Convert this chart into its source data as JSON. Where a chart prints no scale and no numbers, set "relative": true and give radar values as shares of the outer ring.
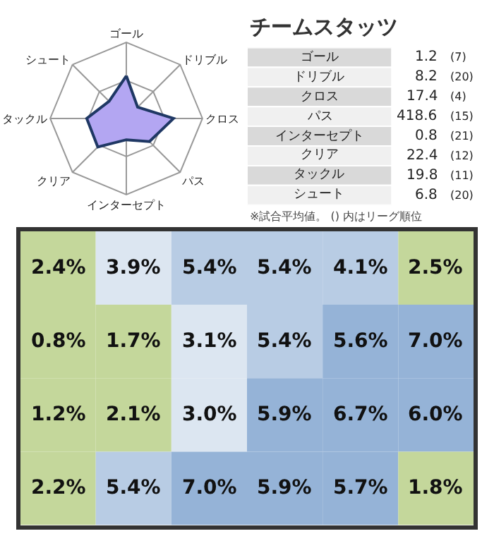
{
  "chart_data": [
    {
      "type": "radar",
      "categories": [
        "ゴール",
        "ドリブル",
        "クロス",
        "パス",
        "インターセプト",
        "クリア",
        "タックル",
        "シュート"
      ],
      "relative": true,
      "grid": true,
      "series": [
        {
          "color": "#b3a6f2",
          "values": [
            0.56,
            0.21,
            0.62,
            0.43,
            0.28,
            0.53,
            0.52,
            0.32
          ]
        }
      ]
    },
    {
      "type": "other",
      "title": "チームスタッツ",
      "categories": [
        "ゴール",
        "ドリブル",
        "クロス",
        "パス",
        "インターセプト",
        "クリア",
        "タックル",
        "シュート"
      ],
      "series": [
        {
          "values": [
            1.2,
            8.2,
            17.4,
            418.6,
            0.8,
            22.4,
            19.8,
            6.8
          ],
          "value_labels": [
            "1.2",
            "8.2",
            "17.4",
            "418.6",
            "0.8",
            "22.4",
            "19.8",
            "6.8"
          ]
        },
        {
          "values": [
            7,
            20,
            4,
            15,
            21,
            12,
            11,
            20
          ],
          "value_labels": [
            "(7)",
            "(20)",
            "(4)",
            "(15)",
            "(21)",
            "(12)",
            "(11)",
            "(20)"
          ]
        }
      ],
      "annotations": [
        "※試合平均値。 () 内はリーグ順位"
      ]
    },
    {
      "type": "heatmap",
      "categories": [
        null,
        null,
        null,
        null,
        null,
        null
      ],
      "y_categories": [
        null,
        null,
        null,
        null
      ],
      "cells": [
        [
          2.4,
          3.9,
          5.4,
          5.4,
          4.1,
          2.5
        ],
        [
          0.8,
          1.7,
          3.1,
          5.4,
          5.6,
          7.0
        ],
        [
          1.2,
          2.1,
          3.0,
          5.9,
          6.7,
          6.0
        ],
        [
          2.2,
          5.4,
          7.0,
          5.9,
          5.7,
          1.8
        ]
      ],
      "cell_labels": [
        [
          "2.4%",
          "3.9%",
          "5.4%",
          "5.4%",
          "4.1%",
          "2.5%"
        ],
        [
          "0.8%",
          "1.7%",
          "3.1%",
          "5.4%",
          "5.6%",
          "7.0%"
        ],
        [
          "1.2%",
          "2.1%",
          "3.0%",
          "5.9%",
          "6.7%",
          "6.0%"
        ],
        [
          "2.2%",
          "5.4%",
          "7.0%",
          "5.9%",
          "5.7%",
          "1.8%"
        ]
      ],
      "colors": [
        [
          "#c4d79b",
          "#dce6f1",
          "#b8cce4",
          "#b8cce4",
          "#b8cce4",
          "#c4d79b"
        ],
        [
          "#c4d79b",
          "#c4d79b",
          "#dce6f1",
          "#b8cce4",
          "#95b3d7",
          "#95b3d7"
        ],
        [
          "#c4d79b",
          "#c4d79b",
          "#dce6f1",
          "#95b3d7",
          "#95b3d7",
          "#95b3d7"
        ],
        [
          "#c4d79b",
          "#b8cce4",
          "#95b3d7",
          "#95b3d7",
          "#95b3d7",
          "#c4d79b"
        ]
      ]
    }
  ]
}
